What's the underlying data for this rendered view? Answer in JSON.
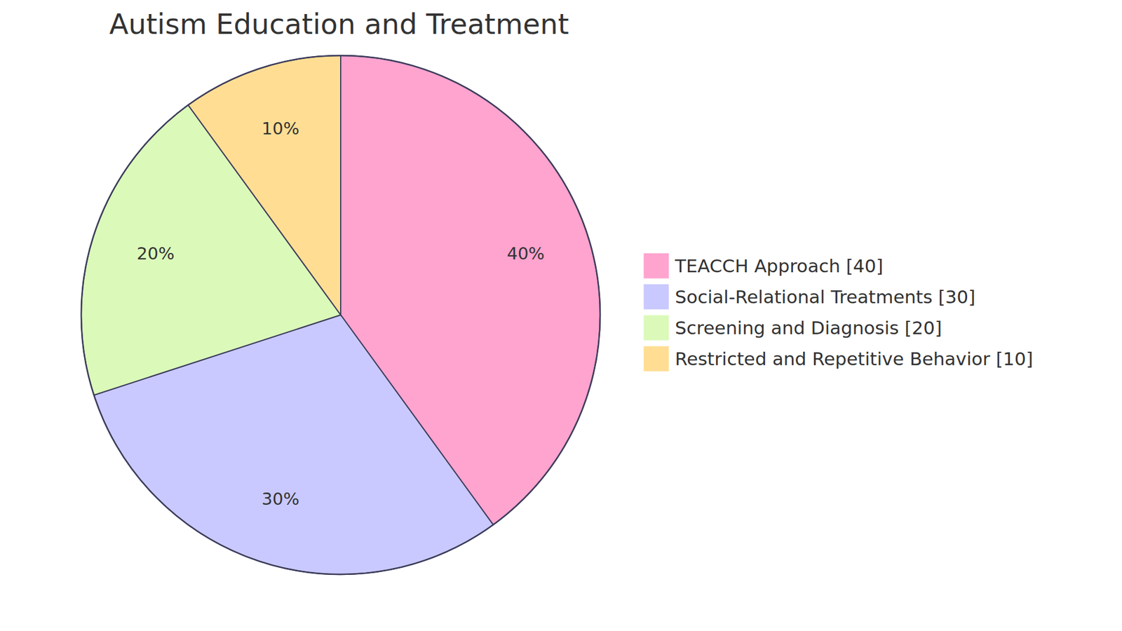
{
  "chart_data": {
    "type": "pie",
    "title": "Autism Education and Treatment",
    "categories": [
      "TEACCH Approach",
      "Social-Relational Treatments",
      "Screening and Diagnosis",
      "Restricted and Repetitive Behavior"
    ],
    "values": [
      40,
      30,
      20,
      10
    ],
    "value_labels": [
      "40%",
      "30%",
      "20%",
      "10%"
    ],
    "colors": [
      "#ffa3cf",
      "#c9c9ff",
      "#dbfab9",
      "#ffde94"
    ],
    "data_labels": true,
    "legend": "right"
  }
}
